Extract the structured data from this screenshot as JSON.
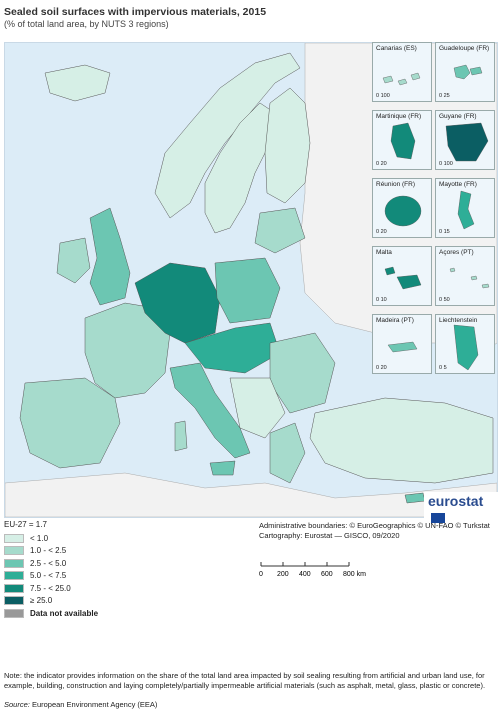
{
  "header": {
    "title": "Sealed soil surfaces with impervious materials, 2015",
    "subtitle": "(% of total land area, by NUTS 3 regions)"
  },
  "insets": [
    {
      "name": "Canarias (ES)",
      "scale": "0   100"
    },
    {
      "name": "Guadeloupe (FR)",
      "scale": "0   25"
    },
    {
      "name": "Martinique (FR)",
      "scale": "0   20"
    },
    {
      "name": "Guyane (FR)",
      "scale": "0   100"
    },
    {
      "name": "Réunion (FR)",
      "scale": "0   20"
    },
    {
      "name": "Mayotte (FR)",
      "scale": "0   15"
    },
    {
      "name": "Malta",
      "scale": "0   10"
    },
    {
      "name": "Açores (PT)",
      "scale": "0   50"
    },
    {
      "name": "Madeira (PT)",
      "scale": "0   20"
    },
    {
      "name": "Liechtenstein",
      "scale": "0   5"
    }
  ],
  "logo": "eurostat",
  "legend": {
    "eu_value": "EU-27 = 1.7",
    "classes": [
      {
        "label": "< 1.0",
        "color": "#d6efe6"
      },
      {
        "label": "1.0 - < 2.5",
        "color": "#a6dbcc"
      },
      {
        "label": "2.5 - < 5.0",
        "color": "#6cc6b2"
      },
      {
        "label": "5.0 - < 7.5",
        "color": "#2eae97"
      },
      {
        "label": "7.5 - < 25.0",
        "color": "#128a7a"
      },
      {
        "label": "≥ 25.0",
        "color": "#0b5e63"
      }
    ],
    "na_label": "Data not available",
    "na_color": "#999999"
  },
  "credits": {
    "boundaries": "Administrative boundaries: © EuroGeographics © UN-FAO © Turkstat",
    "cartography": "Cartography: Eurostat — GISCO, 09/2020"
  },
  "scalebar": {
    "ticks": [
      "0",
      "200",
      "400",
      "600",
      "800 km"
    ]
  },
  "note": "Note: the indicator provides information on the share of the total land area impacted by soil sealing resulting from artificial and urban land use, for example, building, construction and laying completely/partially impermeable artificial materials (such as asphalt, metal, glass, plastic or concrete).",
  "source": {
    "prefix": "Source:",
    "text": " European Environment Agency (EEA)"
  },
  "colors": {
    "sea": "#dcecf7",
    "non_eu_land": "#f2f2f2",
    "borders": "#555555"
  }
}
